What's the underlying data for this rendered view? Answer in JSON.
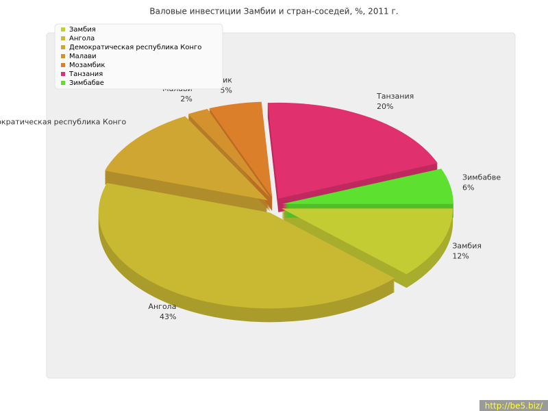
{
  "chart_data": {
    "type": "pie",
    "title": "Валовые инвестиции Замбии и стран-соседей, %, 2011 г.",
    "categories": [
      "Замбия",
      "Ангола",
      "Демократическая республика Конго",
      "Малави",
      "Мозамбик",
      "Танзания",
      "Зимбабве"
    ],
    "values": [
      12,
      43,
      12,
      2,
      5,
      20,
      6
    ],
    "value_labels": [
      "12%",
      "43%",
      null,
      "2%",
      "5%",
      "20%",
      "6%"
    ],
    "colors": [
      "#c4cc34",
      "#c8b832",
      "#cfa632",
      "#d4922e",
      "#dc7f2a",
      "#e0306e",
      "#5ee030"
    ],
    "legend": "top-left",
    "watermark": "http://be5.biz/"
  }
}
